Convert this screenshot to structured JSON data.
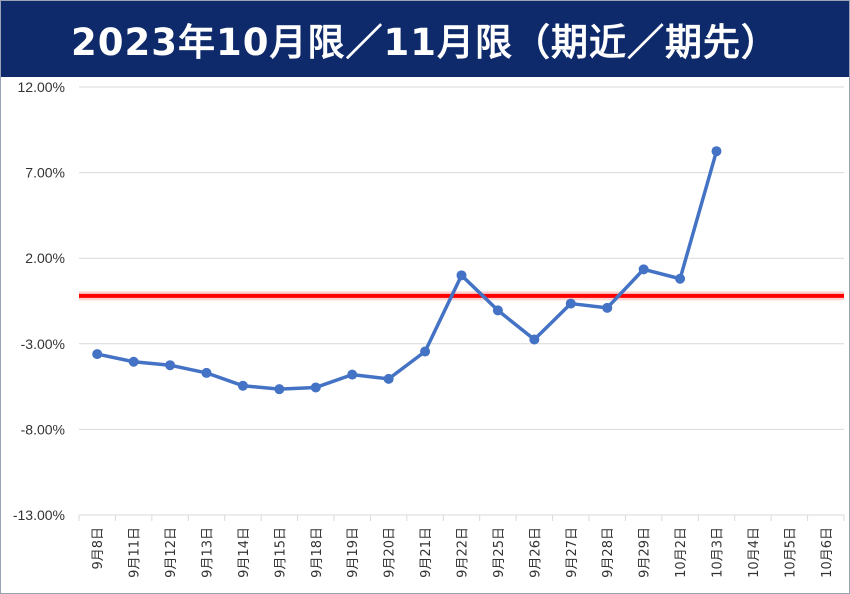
{
  "title": "2023年10月限／11月限（期近／期先）",
  "colors": {
    "title_background": "#0e2a6b",
    "title_text": "#ffffff",
    "series": "#4472c4",
    "reference_line": "#ff0000",
    "gridline": "#d9d9d9"
  },
  "chart_data": {
    "type": "line",
    "title": "2023年10月限／11月限（期近／期先）",
    "xlabel": "",
    "ylabel": "",
    "ylim": [
      -13,
      12
    ],
    "y_ticks": [
      12,
      7,
      2,
      -3,
      -8,
      -13
    ],
    "y_tick_labels": [
      "12.00%",
      "7.00%",
      "2.00%",
      "-3.00%",
      "-8.00%",
      "-13.00%"
    ],
    "y_unit": "%",
    "grid": "horizontal",
    "legend": "none",
    "reference_line_y": -0.2,
    "categories": [
      "9月8日",
      "9月11日",
      "9月12日",
      "9月13日",
      "9月14日",
      "9月15日",
      "9月18日",
      "9月19日",
      "9月20日",
      "9月21日",
      "9月22日",
      "9月25日",
      "9月26日",
      "9月27日",
      "9月28日",
      "9月29日",
      "10月2日",
      "10月3日",
      "10月4日",
      "10月5日",
      "10月6日"
    ],
    "series": [
      {
        "values": [
          -3.6,
          -4.05,
          -4.25,
          -4.7,
          -5.45,
          -5.65,
          -5.55,
          -4.8,
          -5.05,
          -3.45,
          1.0,
          -1.05,
          -2.75,
          -0.65,
          -0.9,
          1.35,
          0.8,
          8.25,
          null,
          null,
          null
        ]
      }
    ]
  }
}
